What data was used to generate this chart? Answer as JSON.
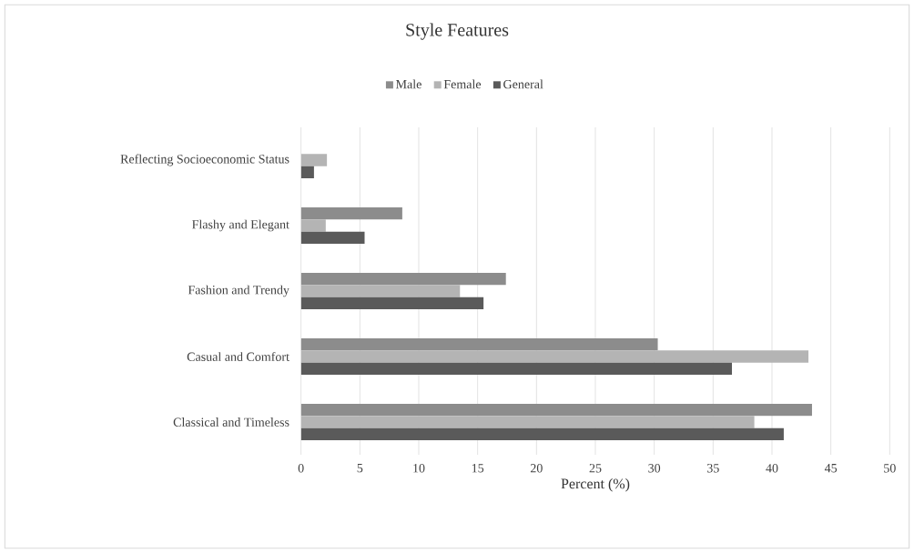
{
  "chart_data": {
    "type": "bar",
    "orientation": "horizontal",
    "title": "Style Features",
    "xlabel": "Percent (%)",
    "categories": [
      "Reflecting Socioeconomic Status",
      "Flashy and Elegant",
      "Fashion and Trendy",
      "Casual and Comfort",
      "Classical and Timeless"
    ],
    "series": [
      {
        "name": "Male",
        "color": "#8c8c8c",
        "values": [
          0,
          8.6,
          17.4,
          30.3,
          43.4
        ]
      },
      {
        "name": "Female",
        "color": "#b4b4b4",
        "values": [
          2.2,
          2.1,
          13.5,
          43.1,
          38.5
        ]
      },
      {
        "name": "General",
        "color": "#5a5a5a",
        "values": [
          1.1,
          5.4,
          15.5,
          36.6,
          41.0
        ]
      }
    ],
    "xlim": [
      0,
      50
    ],
    "xticks": [
      0,
      5,
      10,
      15,
      20,
      25,
      30,
      35,
      40,
      45,
      50
    ],
    "grid": "x",
    "legend": "top"
  }
}
